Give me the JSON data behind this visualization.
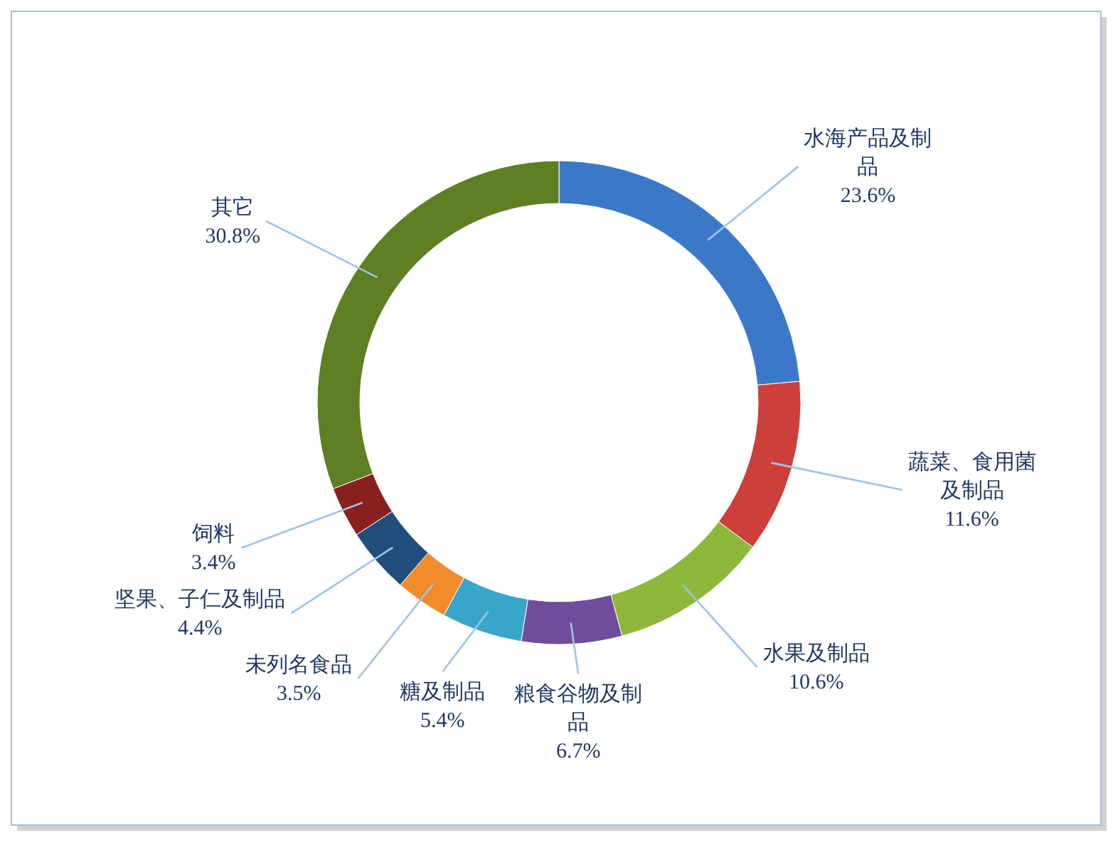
{
  "chart_data": {
    "type": "donut",
    "categories": [
      "水海产品及制品",
      "蔬菜、食用菌及制品",
      "水果及制品",
      "粮食谷物及制品",
      "糖及制品",
      "未列名食品",
      "坚果、子仁及制品",
      "饲料",
      "其它"
    ],
    "values": [
      23.6,
      11.6,
      10.6,
      6.7,
      5.4,
      3.5,
      4.4,
      3.4,
      30.8
    ],
    "colors": [
      "#3b78c8",
      "#cc3f3b",
      "#8db83c",
      "#6f4d9c",
      "#37a6c8",
      "#f28c2a",
      "#1f4e7a",
      "#8a1f1f",
      "#5e7f24"
    ],
    "value_labels": [
      "23.6%",
      "11.6%",
      "10.6%",
      "6.7%",
      "5.4%",
      "3.5%",
      "4.4%",
      "3.4%",
      "30.8%"
    ]
  }
}
